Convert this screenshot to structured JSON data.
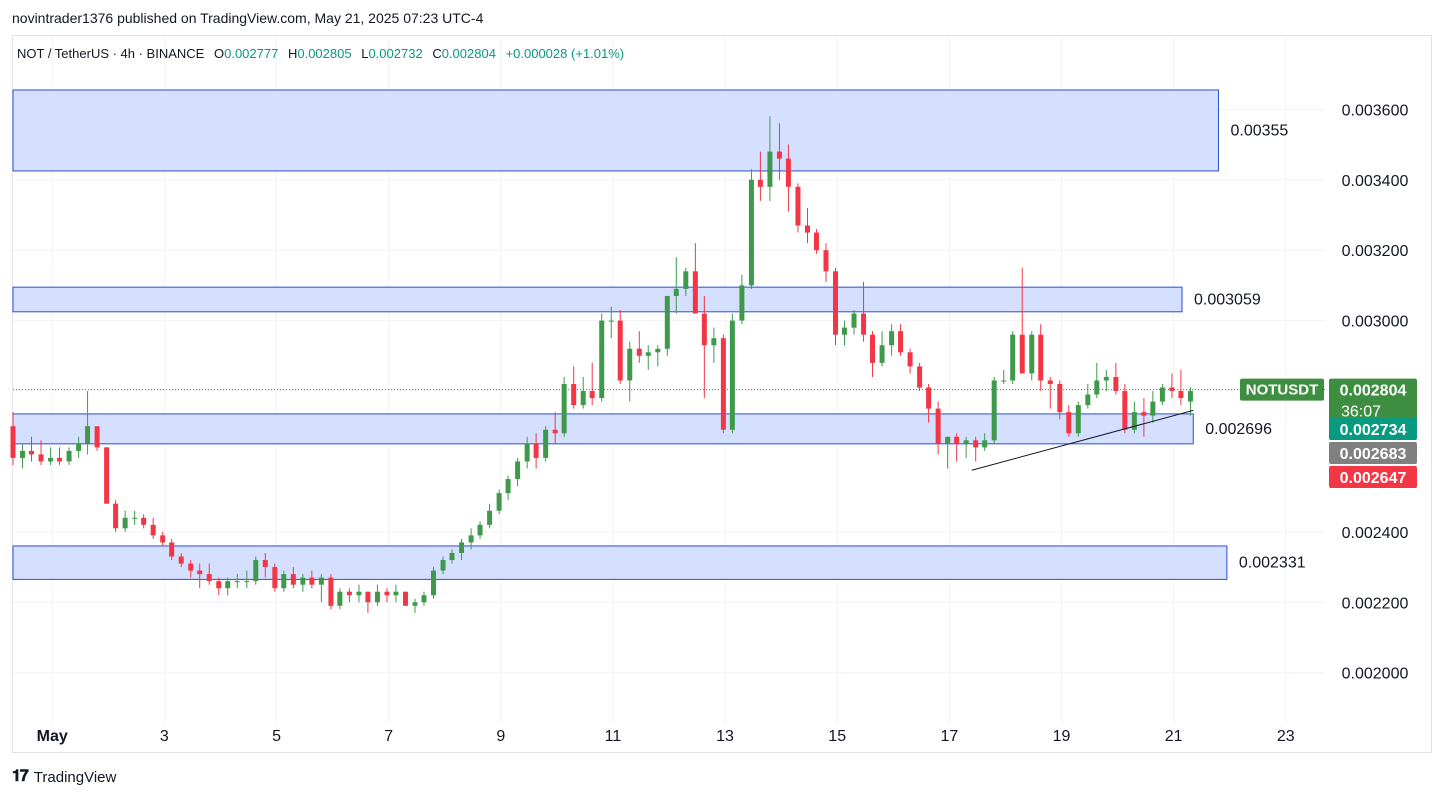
{
  "header": {
    "publisher_line": "novintrader1376 published on TradingView.com, May 21, 2025 07:23 UTC-4"
  },
  "legend": {
    "symbol_line": "NOT / TetherUS · 4h · BINANCE",
    "open_label": "O",
    "open_value": "0.002777",
    "high_label": "H",
    "high_value": "0.002805",
    "low_label": "L",
    "low_value": "0.002732",
    "close_label": "C",
    "close_value": "0.002804",
    "change": "+0.000028 (+1.01%)"
  },
  "footer": {
    "brand": "TradingView"
  },
  "colors": {
    "up": "#3e9a4a",
    "down": "#f23645",
    "zone_fill": "#d3ddff",
    "zone_border": "#2a4fd6",
    "grid": "#f0f3fa",
    "axis_text": "#131722",
    "last_price_label": "#3e8e41",
    "high_label": "#089981",
    "mid_label": "#808080",
    "low_label": "#f23645"
  },
  "chart_data": {
    "type": "candlestick",
    "symbol": "NOTUSDT",
    "timeframe": "4h",
    "y_axis": {
      "ticks": [
        "0.003600",
        "0.003400",
        "0.003200",
        "0.003000",
        "0.002400",
        "0.002200",
        "0.002000"
      ],
      "range": [
        0.00186,
        0.00376
      ]
    },
    "x_axis": {
      "ticks": [
        "May",
        "3",
        "5",
        "7",
        "9",
        "11",
        "13",
        "15",
        "17",
        "19",
        "21",
        "23"
      ],
      "range_days": [
        0.3,
        23.7
      ]
    },
    "zones": [
      {
        "label": "0.00355",
        "top": 0.003655,
        "bottom": 0.003425,
        "x_start": 0.3,
        "x_end": 21.8
      },
      {
        "label": "0.003059",
        "top": 0.003095,
        "bottom": 0.003025,
        "x_start": 0.3,
        "x_end": 21.15
      },
      {
        "label": "0.002696",
        "top": 0.002735,
        "bottom": 0.00265,
        "x_start": 0.3,
        "x_end": 21.35
      },
      {
        "label": "0.002331",
        "top": 0.00236,
        "bottom": 0.002265,
        "x_start": 0.3,
        "x_end": 21.95
      }
    ],
    "trendline": {
      "from": [
        17.4,
        0.002575
      ],
      "to": [
        21.35,
        0.002745
      ]
    },
    "price_labels": [
      {
        "name": "NOTUSDT",
        "value": "0.002804",
        "countdown": "36:07"
      },
      {
        "value": "0.002734"
      },
      {
        "value": "0.002683"
      },
      {
        "value": "0.002647"
      }
    ],
    "candles": [
      [
        0.3,
        0.0027,
        0.00274,
        0.00259,
        0.00261
      ],
      [
        0.47,
        0.00261,
        0.00265,
        0.00258,
        0.00263
      ],
      [
        0.63,
        0.00263,
        0.00267,
        0.0026,
        0.00262
      ],
      [
        0.8,
        0.00262,
        0.00266,
        0.00259,
        0.0026
      ],
      [
        0.97,
        0.0026,
        0.00264,
        0.00259,
        0.00261
      ],
      [
        1.13,
        0.00261,
        0.00264,
        0.00259,
        0.0026
      ],
      [
        1.3,
        0.0026,
        0.00264,
        0.00259,
        0.00263
      ],
      [
        1.47,
        0.00263,
        0.00267,
        0.00261,
        0.00265
      ],
      [
        1.63,
        0.00265,
        0.0028,
        0.00262,
        0.0027
      ],
      [
        1.8,
        0.0027,
        0.0027,
        0.00263,
        0.00264
      ],
      [
        1.97,
        0.00264,
        0.00264,
        0.00248,
        0.00248
      ],
      [
        2.13,
        0.00248,
        0.00249,
        0.0024,
        0.00241
      ],
      [
        2.3,
        0.00241,
        0.00246,
        0.0024,
        0.00244
      ],
      [
        2.47,
        0.00244,
        0.00246,
        0.00242,
        0.00244
      ],
      [
        2.63,
        0.00244,
        0.00245,
        0.00241,
        0.00242
      ],
      [
        2.8,
        0.00242,
        0.00244,
        0.00238,
        0.00239
      ],
      [
        2.97,
        0.00239,
        0.0024,
        0.00236,
        0.00237
      ],
      [
        3.13,
        0.00237,
        0.00238,
        0.00232,
        0.00233
      ],
      [
        3.3,
        0.00233,
        0.00234,
        0.0023,
        0.00231
      ],
      [
        3.47,
        0.00231,
        0.00232,
        0.00227,
        0.00229
      ],
      [
        3.63,
        0.00229,
        0.00231,
        0.00224,
        0.00228
      ],
      [
        3.8,
        0.00228,
        0.00231,
        0.00225,
        0.00226
      ],
      [
        3.97,
        0.00226,
        0.00227,
        0.00222,
        0.00224
      ],
      [
        4.13,
        0.00224,
        0.00227,
        0.00222,
        0.00226
      ],
      [
        4.3,
        0.00226,
        0.00228,
        0.00224,
        0.00226
      ],
      [
        4.47,
        0.00226,
        0.00229,
        0.00224,
        0.00226
      ],
      [
        4.63,
        0.00226,
        0.00233,
        0.00225,
        0.00232
      ],
      [
        4.8,
        0.00232,
        0.00234,
        0.00227,
        0.0023
      ],
      [
        4.97,
        0.0023,
        0.00231,
        0.00223,
        0.00224
      ],
      [
        5.13,
        0.00224,
        0.00229,
        0.00223,
        0.00228
      ],
      [
        5.3,
        0.00228,
        0.0023,
        0.00224,
        0.00225
      ],
      [
        5.47,
        0.00225,
        0.00228,
        0.00223,
        0.00227
      ],
      [
        5.63,
        0.00227,
        0.00229,
        0.00224,
        0.00225
      ],
      [
        5.8,
        0.00225,
        0.00228,
        0.0022,
        0.00227
      ],
      [
        5.97,
        0.00227,
        0.00228,
        0.00218,
        0.00219
      ],
      [
        6.13,
        0.00219,
        0.00224,
        0.00218,
        0.00223
      ],
      [
        6.3,
        0.00223,
        0.00224,
        0.0022,
        0.00222
      ],
      [
        6.47,
        0.00222,
        0.00225,
        0.0022,
        0.00223
      ],
      [
        6.63,
        0.00223,
        0.00223,
        0.00217,
        0.0022
      ],
      [
        6.8,
        0.0022,
        0.00225,
        0.00219,
        0.00223
      ],
      [
        6.97,
        0.00223,
        0.00224,
        0.0022,
        0.00222
      ],
      [
        7.13,
        0.00222,
        0.00225,
        0.0022,
        0.00223
      ],
      [
        7.3,
        0.00223,
        0.00223,
        0.00219,
        0.00219
      ],
      [
        7.47,
        0.00219,
        0.00221,
        0.00217,
        0.0022
      ],
      [
        7.63,
        0.0022,
        0.00223,
        0.00219,
        0.00222
      ],
      [
        7.8,
        0.00222,
        0.0023,
        0.00221,
        0.00229
      ],
      [
        7.97,
        0.00229,
        0.00233,
        0.00228,
        0.00232
      ],
      [
        8.13,
        0.00232,
        0.00235,
        0.00231,
        0.00234
      ],
      [
        8.3,
        0.00234,
        0.00238,
        0.00232,
        0.00237
      ],
      [
        8.47,
        0.00237,
        0.00241,
        0.00235,
        0.00239
      ],
      [
        8.63,
        0.00239,
        0.00243,
        0.00238,
        0.00242
      ],
      [
        8.8,
        0.00242,
        0.00248,
        0.00241,
        0.00246
      ],
      [
        8.97,
        0.00246,
        0.00252,
        0.00245,
        0.00251
      ],
      [
        9.13,
        0.00251,
        0.00256,
        0.00249,
        0.00255
      ],
      [
        9.3,
        0.00255,
        0.00261,
        0.00253,
        0.0026
      ],
      [
        9.47,
        0.0026,
        0.00267,
        0.00258,
        0.00265
      ],
      [
        9.63,
        0.00265,
        0.00268,
        0.00258,
        0.00261
      ],
      [
        9.8,
        0.00261,
        0.0027,
        0.0026,
        0.00269
      ],
      [
        9.97,
        0.00269,
        0.00274,
        0.00265,
        0.00268
      ],
      [
        10.13,
        0.00268,
        0.00284,
        0.00267,
        0.00282
      ],
      [
        10.3,
        0.00282,
        0.00287,
        0.00275,
        0.00276
      ],
      [
        10.47,
        0.00276,
        0.00284,
        0.00275,
        0.0028
      ],
      [
        10.63,
        0.0028,
        0.00288,
        0.00276,
        0.00278
      ],
      [
        10.8,
        0.00278,
        0.00302,
        0.00277,
        0.003
      ],
      [
        10.97,
        0.003,
        0.00304,
        0.00295,
        0.003
      ],
      [
        11.13,
        0.003,
        0.00303,
        0.00282,
        0.00283
      ],
      [
        11.3,
        0.00283,
        0.00294,
        0.00277,
        0.00292
      ],
      [
        11.47,
        0.00292,
        0.00297,
        0.00288,
        0.0029
      ],
      [
        11.63,
        0.0029,
        0.00293,
        0.00286,
        0.00291
      ],
      [
        11.8,
        0.00291,
        0.00293,
        0.00287,
        0.00292
      ],
      [
        11.97,
        0.00292,
        0.00307,
        0.0029,
        0.00307
      ],
      [
        12.13,
        0.00307,
        0.00318,
        0.00302,
        0.00309
      ],
      [
        12.3,
        0.00309,
        0.00315,
        0.00307,
        0.00314
      ],
      [
        12.47,
        0.00314,
        0.00322,
        0.00302,
        0.00302
      ],
      [
        12.63,
        0.00302,
        0.00307,
        0.00278,
        0.00293
      ],
      [
        12.8,
        0.00293,
        0.00298,
        0.00288,
        0.00295
      ],
      [
        12.97,
        0.00295,
        0.00296,
        0.00268,
        0.00269
      ],
      [
        13.13,
        0.00269,
        0.00302,
        0.00268,
        0.003
      ],
      [
        13.3,
        0.003,
        0.00313,
        0.00299,
        0.0031
      ],
      [
        13.47,
        0.0031,
        0.00343,
        0.00309,
        0.0034
      ],
      [
        13.63,
        0.0034,
        0.00348,
        0.00334,
        0.00338
      ],
      [
        13.8,
        0.00338,
        0.00358,
        0.00334,
        0.00348
      ],
      [
        13.97,
        0.00348,
        0.00356,
        0.0034,
        0.00346
      ],
      [
        14.13,
        0.00346,
        0.0035,
        0.00331,
        0.00338
      ],
      [
        14.3,
        0.00338,
        0.00339,
        0.00325,
        0.00327
      ],
      [
        14.47,
        0.00327,
        0.00332,
        0.00322,
        0.00325
      ],
      [
        14.63,
        0.00325,
        0.00326,
        0.00319,
        0.0032
      ],
      [
        14.8,
        0.0032,
        0.00322,
        0.00311,
        0.00314
      ],
      [
        14.97,
        0.00314,
        0.00315,
        0.00293,
        0.00296
      ],
      [
        15.13,
        0.00296,
        0.003,
        0.00293,
        0.00298
      ],
      [
        15.3,
        0.00298,
        0.00303,
        0.00296,
        0.00302
      ],
      [
        15.47,
        0.00302,
        0.00311,
        0.00294,
        0.00296
      ],
      [
        15.63,
        0.00296,
        0.00297,
        0.00284,
        0.00288
      ],
      [
        15.8,
        0.00288,
        0.00297,
        0.00287,
        0.00293
      ],
      [
        15.97,
        0.00293,
        0.00299,
        0.0029,
        0.00297
      ],
      [
        16.13,
        0.00297,
        0.00299,
        0.0029,
        0.00291
      ],
      [
        16.3,
        0.00291,
        0.00292,
        0.00285,
        0.00287
      ],
      [
        16.47,
        0.00287,
        0.00288,
        0.0028,
        0.00281
      ],
      [
        16.63,
        0.00281,
        0.00282,
        0.00271,
        0.00275
      ],
      [
        16.8,
        0.00275,
        0.00277,
        0.00262,
        0.00265
      ],
      [
        16.97,
        0.00265,
        0.00267,
        0.00258,
        0.00267
      ],
      [
        17.13,
        0.00267,
        0.00268,
        0.0026,
        0.00265
      ],
      [
        17.3,
        0.00265,
        0.00267,
        0.00261,
        0.00266
      ],
      [
        17.47,
        0.00266,
        0.00267,
        0.0026,
        0.00264
      ],
      [
        17.63,
        0.00264,
        0.00268,
        0.00263,
        0.00266
      ],
      [
        17.8,
        0.00266,
        0.00284,
        0.00265,
        0.00283
      ],
      [
        17.97,
        0.00283,
        0.00286,
        0.00282,
        0.00283
      ],
      [
        18.13,
        0.00283,
        0.00297,
        0.00282,
        0.00296
      ],
      [
        18.3,
        0.00296,
        0.00315,
        0.00285,
        0.00285
      ],
      [
        18.47,
        0.00285,
        0.00297,
        0.00283,
        0.00296
      ],
      [
        18.63,
        0.00296,
        0.00299,
        0.0028,
        0.00283
      ],
      [
        18.8,
        0.00283,
        0.00284,
        0.00275,
        0.00282
      ],
      [
        18.97,
        0.00282,
        0.00283,
        0.00272,
        0.00274
      ],
      [
        19.13,
        0.00274,
        0.00276,
        0.00267,
        0.00268
      ],
      [
        19.3,
        0.00268,
        0.00277,
        0.00267,
        0.00276
      ],
      [
        19.47,
        0.00276,
        0.00282,
        0.00275,
        0.00279
      ],
      [
        19.63,
        0.00279,
        0.00288,
        0.00278,
        0.00283
      ],
      [
        19.8,
        0.00283,
        0.00286,
        0.0028,
        0.00284
      ],
      [
        19.97,
        0.00284,
        0.00288,
        0.00279,
        0.0028
      ],
      [
        20.13,
        0.0028,
        0.00282,
        0.00268,
        0.00269
      ],
      [
        20.3,
        0.00269,
        0.00277,
        0.00268,
        0.00274
      ],
      [
        20.47,
        0.00274,
        0.00278,
        0.00267,
        0.00273
      ],
      [
        20.63,
        0.00273,
        0.0028,
        0.00271,
        0.00277
      ],
      [
        20.8,
        0.00277,
        0.00282,
        0.00276,
        0.00281
      ],
      [
        20.97,
        0.00281,
        0.00285,
        0.00278,
        0.0028
      ],
      [
        21.13,
        0.0028,
        0.00286,
        0.00276,
        0.00278
      ],
      [
        21.3,
        0.00277,
        0.00281,
        0.00273,
        0.0028
      ]
    ]
  }
}
